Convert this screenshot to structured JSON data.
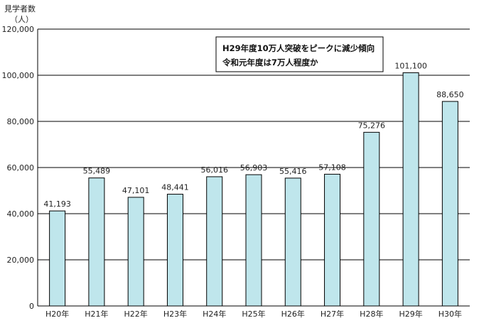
{
  "chart_data": {
    "type": "bar",
    "ylabel_line1": "見学者数",
    "ylabel_line2": "（人）",
    "categories": [
      "H20年",
      "H21年",
      "H22年",
      "H23年",
      "H24年",
      "H25年",
      "H26年",
      "H27年",
      "H28年",
      "H29年",
      "H30年"
    ],
    "values": [
      41193,
      55489,
      47101,
      48441,
      56016,
      56903,
      55416,
      57108,
      75276,
      101100,
      88650
    ],
    "value_labels": [
      "41,193",
      "55,489",
      "47,101",
      "48,441",
      "56,016",
      "56,903",
      "55,416",
      "57,108",
      "75,276",
      "101,100",
      "88,650"
    ],
    "ylim": [
      0,
      120000
    ],
    "yticks": [
      0,
      20000,
      40000,
      60000,
      80000,
      100000,
      120000
    ],
    "ytick_labels": [
      "0",
      "20,000",
      "40,000",
      "60,000",
      "80,000",
      "100,000",
      "120,000"
    ],
    "grid": true,
    "bar_color": "#bfe6ec",
    "annotation": {
      "line1": "H29年度10万人突破をピークに減少傾向",
      "line2": "令和元年度は7万人程度か"
    }
  }
}
